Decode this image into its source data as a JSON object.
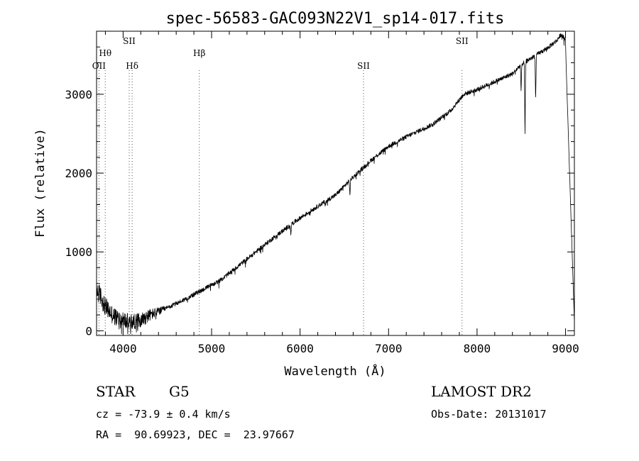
{
  "chart_data": {
    "type": "line",
    "title": "spec-56583-GAC093N22V1_sp14-017.fits",
    "xlabel": "Wavelength (Å)",
    "ylabel": "Flux (relative)",
    "xlim": [
      3700,
      9100
    ],
    "ylim": [
      -60,
      3800
    ],
    "x_ticks": [
      4000,
      5000,
      6000,
      7000,
      8000,
      9000
    ],
    "x_tick_labels": [
      "4000",
      "5000",
      "6000",
      "7000",
      "8000",
      "9000"
    ],
    "y_ticks": [
      0,
      1000,
      2000,
      3000
    ],
    "y_tick_labels": [
      "0",
      "1000",
      "2000",
      "3000"
    ],
    "series": [
      {
        "name": "spectrum",
        "anchors": [
          [
            3700,
            520
          ],
          [
            3750,
            430
          ],
          [
            3800,
            300
          ],
          [
            3900,
            180
          ],
          [
            4000,
            130
          ],
          [
            4100,
            110
          ],
          [
            4200,
            140
          ],
          [
            4300,
            200
          ],
          [
            4500,
            290
          ],
          [
            4700,
            400
          ],
          [
            4900,
            520
          ],
          [
            5100,
            640
          ],
          [
            5300,
            820
          ],
          [
            5500,
            1000
          ],
          [
            5700,
            1180
          ],
          [
            5900,
            1350
          ],
          [
            6000,
            1430
          ],
          [
            6200,
            1580
          ],
          [
            6400,
            1720
          ],
          [
            6600,
            1950
          ],
          [
            6800,
            2160
          ],
          [
            7000,
            2340
          ],
          [
            7200,
            2460
          ],
          [
            7500,
            2620
          ],
          [
            7700,
            2790
          ],
          [
            7850,
            3000
          ],
          [
            8000,
            3060
          ],
          [
            8200,
            3160
          ],
          [
            8400,
            3260
          ],
          [
            8500,
            3380
          ],
          [
            8600,
            3450
          ],
          [
            8700,
            3520
          ],
          [
            8800,
            3590
          ],
          [
            8900,
            3680
          ],
          [
            8950,
            3760
          ],
          [
            9000,
            3690
          ]
        ],
        "absorption": [
          [
            5895,
            120
          ],
          [
            6285,
            60
          ],
          [
            6563,
            170
          ],
          [
            8498,
            350
          ],
          [
            8542,
            900
          ],
          [
            8662,
            550
          ]
        ],
        "noise": [
          [
            3700,
            130
          ],
          [
            4250,
            90
          ],
          [
            4500,
            28
          ],
          [
            9100,
            28
          ]
        ]
      }
    ],
    "lines": [
      {
        "label": "OII",
        "x": 3727,
        "tier": 3
      },
      {
        "label": "Hθ",
        "x": 3798,
        "tier": 2
      },
      {
        "label": "SII",
        "x": 4069,
        "tier": 1
      },
      {
        "label": "Hδ",
        "x": 4102,
        "tier": 3
      },
      {
        "label": "Hβ",
        "x": 4861,
        "tier": 2
      },
      {
        "label": "SII",
        "x": 6717,
        "tier": 3
      },
      {
        "label": "SII",
        "x": 7830,
        "tier": 1
      }
    ]
  },
  "info": {
    "class": "STAR",
    "subclass": "G5",
    "survey": "LAMOST DR2",
    "cz": "cz = -73.9 ± 0.4 km/s",
    "obs_date": "Obs-Date: 20131017",
    "coords": "RA =  90.69923, DEC =  23.97667"
  }
}
